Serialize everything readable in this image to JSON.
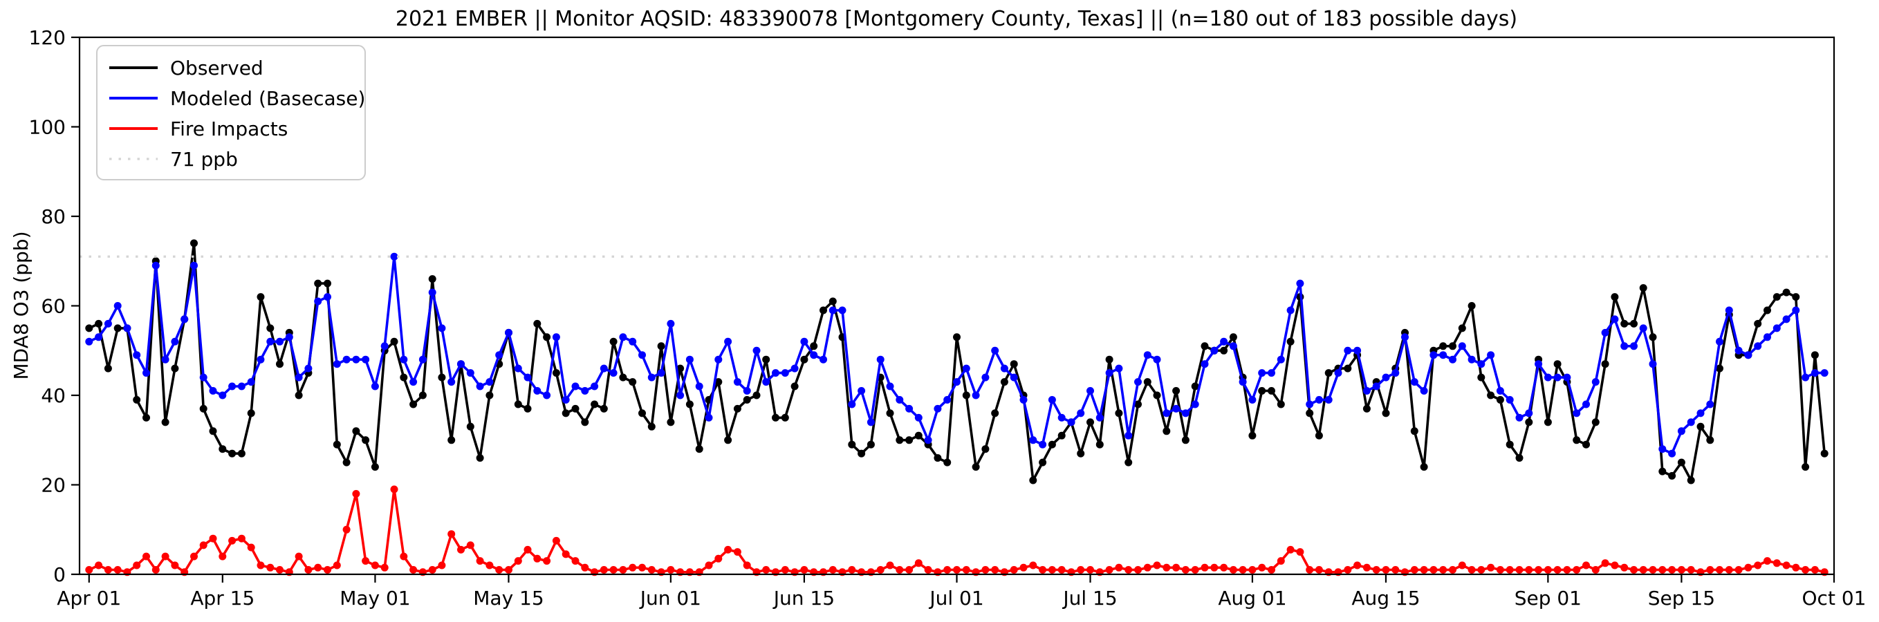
{
  "title": "2021 EMBER || Monitor AQSID: 483390078 [Montgomery County, Texas] || (n=180 out of 183 possible days)",
  "axes": {
    "ylabel": "MDA8 O3 (ppb)",
    "ylim": [
      0,
      120
    ],
    "yticks": [
      0,
      20,
      40,
      60,
      80,
      100,
      120
    ],
    "xtick_labels": [
      "Apr 01",
      "Apr 15",
      "May 01",
      "May 15",
      "Jun 01",
      "Jun 15",
      "Jul 01",
      "Jul 15",
      "Aug 01",
      "Aug 15",
      "Sep 01",
      "Sep 15",
      "Oct 01"
    ],
    "xtick_days": [
      0,
      14,
      30,
      44,
      61,
      75,
      91,
      105,
      122,
      136,
      153,
      167,
      183
    ]
  },
  "legend": {
    "entries": [
      {
        "label": "Observed",
        "color": "#000000",
        "style": "solid"
      },
      {
        "label": "Modeled (Basecase)",
        "color": "#0000ff",
        "style": "solid"
      },
      {
        "label": "Fire Impacts",
        "color": "#ff0000",
        "style": "solid"
      },
      {
        "label": "71 ppb",
        "color": "#d4d4d4",
        "style": "dotted"
      }
    ]
  },
  "chart_data": {
    "type": "line",
    "x_start": "Apr 01",
    "x_end": "Sep 30",
    "n_days": 183,
    "ylabel": "MDA8 O3 (ppb)",
    "ylim": [
      0,
      120
    ],
    "threshold": {
      "value": 71,
      "label": "71 ppb",
      "color": "#d4d4d4"
    },
    "series": [
      {
        "name": "Observed",
        "color": "#000000",
        "values": [
          55,
          56,
          46,
          55,
          55,
          39,
          35,
          70,
          34,
          46,
          57,
          74,
          37,
          32,
          28,
          27,
          27,
          36,
          62,
          55,
          47,
          54,
          40,
          45,
          65,
          65,
          29,
          25,
          32,
          30,
          24,
          50,
          52,
          44,
          38,
          40,
          66,
          44,
          30,
          47,
          33,
          26,
          40,
          47,
          54,
          38,
          37,
          56,
          53,
          45,
          36,
          37,
          34,
          38,
          37,
          52,
          44,
          43,
          36,
          33,
          51,
          34,
          46,
          38,
          28,
          39,
          43,
          30,
          37,
          39,
          40,
          48,
          35,
          35,
          42,
          48,
          51,
          59,
          61,
          53,
          29,
          27,
          29,
          44,
          36,
          30,
          30,
          31,
          29,
          26,
          25,
          53,
          40,
          24,
          28,
          36,
          43,
          47,
          40,
          21,
          25,
          29,
          31,
          34,
          27,
          34,
          29,
          48,
          36,
          25,
          38,
          43,
          40,
          32,
          41,
          30,
          42,
          51,
          50,
          50,
          53,
          44,
          31,
          41,
          41,
          38,
          52,
          62,
          36,
          31,
          45,
          46,
          46,
          49,
          37,
          43,
          36,
          46,
          54,
          32,
          24,
          50,
          51,
          51,
          55,
          60,
          44,
          40,
          39,
          29,
          26,
          34,
          48,
          34,
          47,
          43,
          30,
          29,
          34,
          47,
          62,
          56,
          56,
          64,
          53,
          23,
          22,
          25,
          21,
          33,
          30,
          46,
          58,
          49,
          49,
          56,
          59,
          62,
          63,
          62,
          24,
          49,
          27
        ]
      },
      {
        "name": "Modeled (Basecase)",
        "color": "#0000ff",
        "values": [
          52,
          53,
          56,
          60,
          55,
          49,
          45,
          69,
          48,
          52,
          57,
          69,
          44,
          41,
          40,
          42,
          42,
          43,
          48,
          52,
          52,
          53,
          44,
          46,
          61,
          62,
          47,
          48,
          48,
          48,
          42,
          51,
          71,
          48,
          43,
          48,
          63,
          55,
          43,
          47,
          45,
          42,
          43,
          49,
          54,
          46,
          44,
          41,
          40,
          53,
          39,
          42,
          41,
          42,
          46,
          45,
          53,
          52,
          49,
          44,
          45,
          56,
          40,
          48,
          42,
          35,
          48,
          52,
          43,
          41,
          50,
          43,
          45,
          45,
          46,
          52,
          49,
          48,
          59,
          59,
          38,
          41,
          34,
          48,
          42,
          39,
          37,
          35,
          30,
          37,
          39,
          43,
          46,
          40,
          44,
          50,
          46,
          44,
          39,
          30,
          29,
          39,
          35,
          34,
          36,
          41,
          35,
          45,
          46,
          31,
          43,
          49,
          48,
          36,
          37,
          36,
          38,
          47,
          50,
          52,
          51,
          43,
          39,
          45,
          45,
          48,
          59,
          65,
          38,
          39,
          39,
          45,
          50,
          50,
          41,
          42,
          44,
          45,
          53,
          43,
          41,
          49,
          49,
          48,
          51,
          48,
          47,
          49,
          41,
          39,
          35,
          36,
          47,
          44,
          44,
          44,
          36,
          38,
          43,
          54,
          57,
          51,
          51,
          55,
          47,
          28,
          27,
          32,
          34,
          36,
          38,
          52,
          59,
          50,
          49,
          51,
          53,
          55,
          57,
          59,
          44,
          45,
          45
        ]
      },
      {
        "name": "Fire Impacts",
        "color": "#ff0000",
        "values": [
          1,
          2,
          1,
          1,
          0.5,
          2,
          4,
          1,
          4,
          2,
          0.5,
          4,
          6.5,
          8,
          4,
          7.5,
          8,
          6,
          2,
          1.5,
          1,
          0.5,
          4,
          1,
          1.5,
          1,
          2,
          10,
          18,
          3,
          2,
          1.5,
          19,
          4,
          1,
          0.5,
          1,
          2,
          9,
          5.5,
          6.5,
          3,
          2,
          1,
          1,
          3,
          5.5,
          3.5,
          3,
          7.5,
          4.5,
          3,
          1.5,
          0.5,
          1,
          1,
          1,
          1.5,
          1.5,
          1,
          0.5,
          1,
          0.5,
          0.5,
          0.5,
          2,
          3.5,
          5.5,
          5,
          2,
          0.5,
          1,
          0.5,
          1,
          0.5,
          1,
          0.5,
          0.5,
          1,
          0.5,
          1,
          0.5,
          0.5,
          1,
          2,
          1,
          1,
          2.5,
          1,
          0.5,
          1,
          1,
          1,
          0.5,
          1,
          1,
          0.5,
          1,
          1.5,
          2,
          1,
          1,
          1,
          0.5,
          1,
          1,
          0.5,
          1,
          1.5,
          1,
          1,
          1.5,
          2,
          1.5,
          1.5,
          1,
          1,
          1.5,
          1.5,
          1.5,
          1,
          1,
          1,
          1.5,
          1,
          3,
          5.5,
          5,
          1,
          1,
          0.5,
          0.5,
          1,
          2,
          1.5,
          1,
          1,
          1,
          0.5,
          1,
          1,
          1,
          1,
          1,
          2,
          1,
          1,
          1.5,
          1,
          1,
          1,
          1,
          1,
          1,
          1,
          1,
          1,
          2,
          1,
          2.5,
          2,
          1.5,
          1,
          1,
          1,
          1,
          1,
          1,
          1,
          0.5,
          1,
          1,
          1,
          1,
          1.5,
          2,
          3,
          2.5,
          2,
          1.5,
          1,
          1,
          0.5
        ]
      }
    ]
  }
}
